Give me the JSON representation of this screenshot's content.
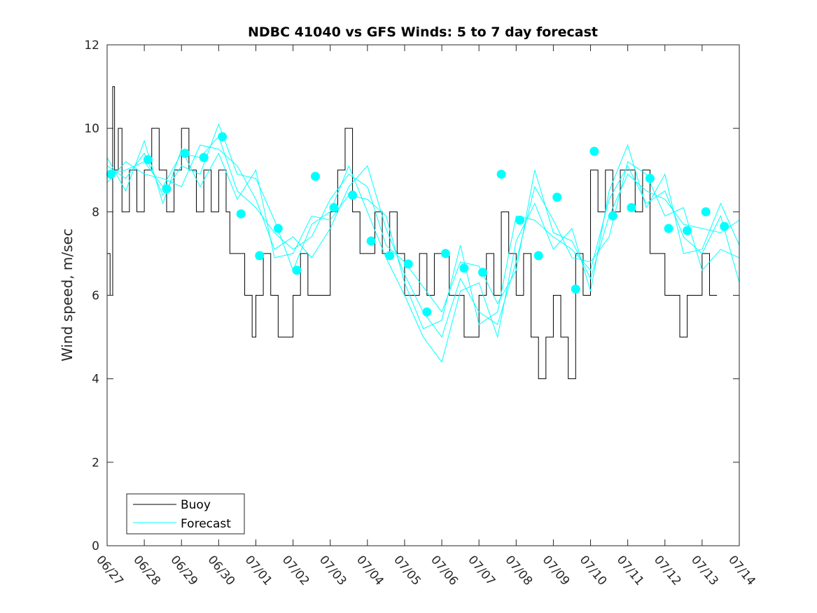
{
  "chart_data": {
    "type": "line",
    "title": "NDBC 41040 vs GFS Winds: 5 to 7 day forecast",
    "xlabel": "",
    "ylabel": "Wind speed, m/sec",
    "ylim": [
      0,
      12
    ],
    "yticks": [
      0,
      2,
      4,
      6,
      8,
      10,
      12
    ],
    "xlim": [
      0,
      17
    ],
    "xtick_labels": [
      "06/27",
      "06/28",
      "06/29",
      "06/30",
      "07/01",
      "07/02",
      "07/03",
      "07/04",
      "07/05",
      "07/06",
      "07/07",
      "07/08",
      "07/09",
      "07/10",
      "07/11",
      "07/12",
      "07/13",
      "07/14"
    ],
    "grid": false,
    "legend": {
      "position": "bottom-left",
      "entries": [
        "Buoy",
        "Forecast"
      ]
    },
    "colors": {
      "buoy": "#000000",
      "forecast": "#00ffff",
      "axis": "#262626"
    },
    "buoy": {
      "name": "Buoy",
      "x": [
        0,
        0.08,
        0.15,
        0.2,
        0.3,
        0.4,
        0.6,
        0.8,
        1.0,
        1.2,
        1.4,
        1.6,
        1.8,
        2.0,
        2.2,
        2.4,
        2.6,
        2.8,
        3.0,
        3.2,
        3.3,
        3.5,
        3.7,
        3.9,
        4.0,
        4.2,
        4.4,
        4.6,
        4.8,
        5.0,
        5.2,
        5.4,
        5.6,
        5.8,
        6.0,
        6.2,
        6.4,
        6.6,
        6.8,
        7.0,
        7.2,
        7.4,
        7.6,
        7.8,
        8.0,
        8.2,
        8.4,
        8.6,
        8.8,
        9.0,
        9.2,
        9.4,
        9.6,
        9.8,
        10.0,
        10.2,
        10.4,
        10.6,
        10.8,
        11.0,
        11.2,
        11.4,
        11.6,
        11.8,
        12.0,
        12.2,
        12.4,
        12.6,
        12.8,
        13.0,
        13.2,
        13.4,
        13.6,
        13.8,
        14.0,
        14.2,
        14.4,
        14.6,
        14.8,
        15.0,
        15.2,
        15.4,
        15.6,
        15.8,
        16.0,
        16.2
      ],
      "y": [
        7,
        6,
        11,
        9,
        10,
        8,
        9,
        8,
        9,
        10,
        9,
        8,
        9,
        10,
        9,
        8,
        9,
        8,
        9,
        8,
        7,
        7,
        6,
        5,
        6,
        7,
        6,
        5,
        5,
        6,
        7,
        6,
        6,
        6,
        8,
        9,
        10,
        8,
        7,
        7,
        8,
        7,
        8,
        7,
        6,
        6,
        7,
        6,
        7,
        7,
        6,
        6,
        5,
        5,
        6,
        7,
        6,
        8,
        7,
        6,
        7,
        5,
        4,
        5,
        6,
        5,
        4,
        7,
        6,
        9,
        8,
        9,
        8,
        9,
        9,
        8,
        9,
        7,
        7,
        6,
        6,
        5,
        6,
        6,
        7,
        6
      ]
    },
    "forecast_lines": [
      {
        "name": "Forecast",
        "x": [
          0,
          0.5,
          1.0,
          1.5,
          2.0,
          2.5,
          3.0,
          3.5,
          4.0,
          4.5,
          5.0,
          5.5,
          6.0,
          6.5,
          7.0,
          7.5,
          8.0,
          8.5,
          9.0,
          9.5,
          10.0,
          10.5,
          11.0,
          11.5,
          12.0,
          12.5,
          13.0,
          13.5,
          14.0,
          14.5,
          15.0,
          15.5,
          16.0,
          16.5,
          17.0
        ],
        "y": [
          8.9,
          9.0,
          9.2,
          8.6,
          9.4,
          9.3,
          9.8,
          8.5,
          8.1,
          7.5,
          7.1,
          7.4,
          8.3,
          8.9,
          8.6,
          7.2,
          6.8,
          6.2,
          5.6,
          6.8,
          6.7,
          5.8,
          6.6,
          9.0,
          7.5,
          7.3,
          6.4,
          7.9,
          8.9,
          8.5,
          8.3,
          7.7,
          7.6,
          7.5,
          7.8
        ]
      },
      {
        "name": "Forecast",
        "x": [
          0,
          0.5,
          1.0,
          1.5,
          2.0,
          2.5,
          3.0,
          3.5,
          4.0,
          4.5,
          5.0,
          5.5,
          6.0,
          6.5,
          7.0,
          7.5,
          8.0,
          8.5,
          9.0,
          9.5,
          10.0,
          10.5,
          11.0,
          11.5,
          12.0,
          12.5,
          13.0,
          13.5,
          14.0,
          14.5,
          15.0,
          15.5,
          16.0,
          16.5,
          17.0
        ],
        "y": [
          9.1,
          8.8,
          9.4,
          8.4,
          9.1,
          8.9,
          10.1,
          8.9,
          8.8,
          7.8,
          6.6,
          7.7,
          8.0,
          9.1,
          8.0,
          6.9,
          6.0,
          5.0,
          4.4,
          6.1,
          6.3,
          5.0,
          7.3,
          8.2,
          7.1,
          7.6,
          6.1,
          8.5,
          9.6,
          8.1,
          8.9,
          7.0,
          7.1,
          8.2,
          7.2
        ]
      },
      {
        "name": "Forecast",
        "x": [
          0,
          0.5,
          1.0,
          1.5,
          2.0,
          2.5,
          3.0,
          3.5,
          4.0,
          4.5,
          5.0,
          5.5,
          6.0,
          6.5,
          7.0,
          7.5,
          8.0,
          8.5,
          9.0,
          9.5,
          10.0,
          10.5,
          11.0,
          11.5,
          12.0,
          12.5,
          13.0,
          13.5,
          14.0,
          14.5,
          15.0,
          15.5,
          16.0,
          16.5,
          17.0
        ],
        "y": [
          8.7,
          9.2,
          8.9,
          8.8,
          8.6,
          9.6,
          9.5,
          9.1,
          8.3,
          7.1,
          7.4,
          6.9,
          7.6,
          8.6,
          9.1,
          7.6,
          6.5,
          5.6,
          5.0,
          6.4,
          5.6,
          5.3,
          6.8,
          8.6,
          7.8,
          6.9,
          6.8,
          7.4,
          9.2,
          8.9,
          7.9,
          8.1,
          6.6,
          7.1,
          6.9
        ]
      },
      {
        "name": "Forecast",
        "x": [
          0,
          0.5,
          1.0,
          1.5,
          2.0,
          2.5,
          3.0,
          3.5,
          4.0,
          4.5,
          5.0,
          5.5,
          6.0,
          6.5,
          7.0,
          7.5,
          8.0,
          8.5,
          9.0,
          9.5,
          10.0,
          10.5,
          11.0,
          11.5,
          12.0,
          12.5,
          13.0,
          13.5,
          14.0,
          14.5,
          15.0,
          15.5,
          16.0,
          16.5,
          17.0
        ],
        "y": [
          9.3,
          8.5,
          9.7,
          8.2,
          9.5,
          8.6,
          9.4,
          8.3,
          9.0,
          6.9,
          7.0,
          7.9,
          7.8,
          8.4,
          8.3,
          7.9,
          6.3,
          5.2,
          5.4,
          7.2,
          5.3,
          5.6,
          7.9,
          7.8,
          7.4,
          7.1,
          6.6,
          8.3,
          9.1,
          8.2,
          8.5,
          7.4,
          7.0,
          7.9,
          6.3
        ]
      }
    ],
    "forecast_points": {
      "name": "Forecast",
      "x": [
        0.1,
        1.1,
        1.6,
        2.1,
        2.6,
        3.1,
        3.6,
        4.1,
        4.6,
        5.1,
        5.6,
        6.1,
        6.6,
        7.1,
        7.6,
        8.1,
        8.6,
        9.1,
        9.6,
        10.1,
        10.6,
        11.1,
        11.6,
        12.1,
        12.6,
        13.1,
        13.6,
        14.1,
        14.6,
        15.1,
        15.6,
        16.1,
        16.6
      ],
      "y": [
        8.9,
        9.25,
        8.55,
        9.4,
        9.3,
        9.8,
        7.95,
        6.95,
        7.6,
        6.6,
        8.85,
        8.1,
        8.4,
        7.3,
        6.95,
        6.75,
        5.6,
        7.0,
        6.65,
        6.55,
        8.9,
        7.8,
        6.95,
        8.35,
        6.15,
        9.45,
        7.9,
        8.1,
        8.8,
        7.6,
        7.55,
        8.0,
        7.65
      ]
    }
  }
}
